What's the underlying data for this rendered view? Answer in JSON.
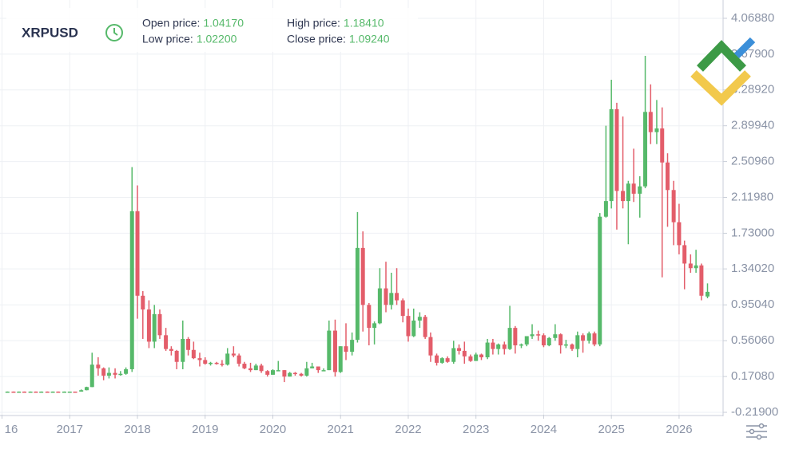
{
  "chart_data": {
    "type": "candlestick",
    "title": "XRPUSD",
    "info": [
      {
        "label": "Open price:",
        "value": "1.04170"
      },
      {
        "label": "Low price:",
        "value": "1.02200"
      },
      {
        "label": "High price:",
        "value": "1.18410"
      },
      {
        "label": "Close price:",
        "value": "1.09240"
      }
    ],
    "up_color": "#56b96a",
    "down_color": "#e35d6a",
    "grid": true,
    "xlim": [
      2015.97,
      2026.65
    ],
    "xticks": [
      {
        "value": 2016,
        "label": "16"
      },
      2017,
      2018,
      2019,
      2020,
      2021,
      2022,
      2023,
      2024,
      2025,
      2026
    ],
    "ylim": [
      -0.245,
      4.268
    ],
    "yticks": [
      {
        "value": -0.219,
        "label": "-0.21900"
      },
      {
        "value": 0.1708,
        "label": "0.17080"
      },
      {
        "value": 0.5606,
        "label": "0.56060"
      },
      {
        "value": 0.9504,
        "label": "0.95040"
      },
      {
        "value": 1.342,
        "label": "1.34020"
      },
      {
        "value": 1.73,
        "label": "1.73000"
      },
      {
        "value": 2.1198,
        "label": "2.11980"
      },
      {
        "value": 2.5096,
        "label": "2.50960"
      },
      {
        "value": 2.8994,
        "label": "2.89940"
      },
      {
        "value": 3.2892,
        "label": "3.28920"
      },
      {
        "value": 3.679,
        "label": "3.67900"
      },
      {
        "value": 4.0688,
        "label": "4.06880"
      }
    ],
    "x": [
      2016.08,
      2016.17,
      2016.25,
      2016.33,
      2016.42,
      2016.5,
      2016.58,
      2016.67,
      2016.75,
      2016.83,
      2016.92,
      2017,
      2017.08,
      2017.17,
      2017.25,
      2017.33,
      2017.42,
      2017.5,
      2017.58,
      2017.67,
      2017.75,
      2017.83,
      2017.92,
      2018,
      2018.08,
      2018.17,
      2018.25,
      2018.33,
      2018.42,
      2018.5,
      2018.58,
      2018.67,
      2018.75,
      2018.83,
      2018.92,
      2019,
      2019.08,
      2019.17,
      2019.25,
      2019.33,
      2019.42,
      2019.5,
      2019.58,
      2019.67,
      2019.75,
      2019.83,
      2019.92,
      2020,
      2020.08,
      2020.17,
      2020.25,
      2020.33,
      2020.42,
      2020.5,
      2020.58,
      2020.67,
      2020.75,
      2020.83,
      2020.92,
      2021,
      2021.08,
      2021.17,
      2021.25,
      2021.33,
      2021.42,
      2021.5,
      2021.58,
      2021.67,
      2021.75,
      2021.83,
      2021.92,
      2022,
      2022.08,
      2022.17,
      2022.25,
      2022.33,
      2022.42,
      2022.5,
      2022.58,
      2022.67,
      2022.75,
      2022.83,
      2022.92,
      2023,
      2023.08,
      2023.17,
      2023.25,
      2023.33,
      2023.42,
      2023.5,
      2023.58,
      2023.67,
      2023.75,
      2023.83,
      2023.92,
      2024,
      2024.08,
      2024.17,
      2024.25,
      2024.33,
      2024.42,
      2024.5,
      2024.58,
      2024.67,
      2024.75,
      2024.83,
      2024.92,
      2025,
      2025.08,
      2025.17,
      2025.25,
      2025.33,
      2025.42,
      2025.5,
      2025.58,
      2025.67,
      2025.75,
      2025.83,
      2025.92,
      2026,
      2026.08,
      2026.17,
      2026.25,
      2026.33,
      2026.42
    ],
    "open": [
      0.006,
      0.0065,
      0.006,
      0.0065,
      0.006,
      0.0065,
      0.006,
      0.0065,
      0.006,
      0.0065,
      0.006,
      0.0065,
      0.0066,
      0.0064,
      0.022,
      0.056,
      0.3,
      0.26,
      0.18,
      0.21,
      0.19,
      0.2,
      0.25,
      1.97,
      1.05,
      0.9,
      0.55,
      0.85,
      0.62,
      0.47,
      0.45,
      0.33,
      0.58,
      0.46,
      0.37,
      0.35,
      0.31,
      0.32,
      0.31,
      0.3,
      0.42,
      0.4,
      0.31,
      0.26,
      0.24,
      0.29,
      0.23,
      0.19,
      0.24,
      0.24,
      0.17,
      0.21,
      0.2,
      0.18,
      0.26,
      0.28,
      0.24,
      0.24,
      0.67,
      0.22,
      0.5,
      0.44,
      0.57,
      1.57,
      0.95,
      0.7,
      0.75,
      1.13,
      0.95,
      1.08,
      1.0,
      0.83,
      0.61,
      0.78,
      0.82,
      0.6,
      0.4,
      0.32,
      0.37,
      0.33,
      0.48,
      0.45,
      0.39,
      0.34,
      0.41,
      0.38,
      0.54,
      0.47,
      0.52,
      0.47,
      0.7,
      0.51,
      0.52,
      0.61,
      0.63,
      0.62,
      0.51,
      0.59,
      0.63,
      0.51,
      0.52,
      0.47,
      0.62,
      0.56,
      0.64,
      0.52,
      1.91,
      2.08,
      3.08,
      2.19,
      2.08,
      2.27,
      2.16,
      2.24,
      3.05,
      2.83,
      2.87,
      2.5,
      2.2,
      1.85,
      1.6,
      1.4,
      1.35,
      1.38,
      1.0417
    ],
    "high": [
      0.008,
      0.008,
      0.008,
      0.008,
      0.008,
      0.008,
      0.008,
      0.008,
      0.008,
      0.008,
      0.008,
      0.0068,
      0.0068,
      0.03,
      0.06,
      0.43,
      0.38,
      0.27,
      0.27,
      0.26,
      0.23,
      0.27,
      2.45,
      2.25,
      1.1,
      1.0,
      0.95,
      0.9,
      0.7,
      0.5,
      0.46,
      0.78,
      0.6,
      0.55,
      0.43,
      0.38,
      0.33,
      0.33,
      0.35,
      0.48,
      0.5,
      0.42,
      0.33,
      0.32,
      0.31,
      0.31,
      0.24,
      0.25,
      0.34,
      0.24,
      0.22,
      0.22,
      0.21,
      0.33,
      0.32,
      0.28,
      0.26,
      0.78,
      0.79,
      0.5,
      0.75,
      0.65,
      1.96,
      1.75,
      0.97,
      0.77,
      1.35,
      1.42,
      1.3,
      1.35,
      1.02,
      0.91,
      0.91,
      0.87,
      0.84,
      0.65,
      0.42,
      0.38,
      0.39,
      0.56,
      0.52,
      0.55,
      0.41,
      0.43,
      0.42,
      0.58,
      0.58,
      0.53,
      0.55,
      0.94,
      0.72,
      0.53,
      0.6,
      0.74,
      0.67,
      0.64,
      0.6,
      0.74,
      0.64,
      0.57,
      0.53,
      0.66,
      0.64,
      0.66,
      0.66,
      1.95,
      2.9,
      3.4,
      3.15,
      3.0,
      2.3,
      2.65,
      2.35,
      3.66,
      3.35,
      3.18,
      3.1,
      2.6,
      2.3,
      2.05,
      1.65,
      1.5,
      1.55,
      1.4,
      1.1841
    ],
    "low": [
      0.005,
      0.005,
      0.005,
      0.005,
      0.005,
      0.005,
      0.005,
      0.005,
      0.005,
      0.005,
      0.005,
      0.006,
      0.006,
      0.006,
      0.02,
      0.055,
      0.18,
      0.13,
      0.15,
      0.15,
      0.18,
      0.19,
      0.22,
      0.8,
      0.58,
      0.48,
      0.48,
      0.58,
      0.45,
      0.4,
      0.25,
      0.25,
      0.4,
      0.36,
      0.28,
      0.3,
      0.29,
      0.3,
      0.28,
      0.29,
      0.38,
      0.28,
      0.25,
      0.22,
      0.24,
      0.21,
      0.17,
      0.19,
      0.23,
      0.11,
      0.17,
      0.18,
      0.17,
      0.17,
      0.26,
      0.21,
      0.23,
      0.24,
      0.17,
      0.21,
      0.35,
      0.4,
      0.54,
      0.66,
      0.51,
      0.52,
      0.74,
      0.87,
      0.9,
      0.95,
      0.76,
      0.55,
      0.6,
      0.7,
      0.58,
      0.33,
      0.29,
      0.31,
      0.32,
      0.31,
      0.41,
      0.31,
      0.33,
      0.34,
      0.35,
      0.36,
      0.41,
      0.41,
      0.41,
      0.46,
      0.42,
      0.48,
      0.5,
      0.58,
      0.56,
      0.49,
      0.5,
      0.56,
      0.42,
      0.48,
      0.45,
      0.38,
      0.43,
      0.53,
      0.5,
      0.5,
      1.9,
      2.0,
      1.77,
      2.0,
      1.61,
      2.07,
      1.9,
      2.22,
      2.7,
      2.7,
      1.25,
      1.8,
      1.6,
      1.5,
      1.12,
      1.3,
      1.3,
      1.0,
      1.022
    ],
    "close": [
      0.0065,
      0.006,
      0.0065,
      0.006,
      0.0065,
      0.006,
      0.0065,
      0.006,
      0.0065,
      0.006,
      0.0065,
      0.0066,
      0.0064,
      0.022,
      0.056,
      0.3,
      0.26,
      0.18,
      0.21,
      0.19,
      0.2,
      0.25,
      1.97,
      1.05,
      0.9,
      0.55,
      0.85,
      0.62,
      0.47,
      0.45,
      0.33,
      0.58,
      0.46,
      0.37,
      0.35,
      0.31,
      0.32,
      0.31,
      0.3,
      0.42,
      0.4,
      0.31,
      0.26,
      0.24,
      0.29,
      0.23,
      0.19,
      0.24,
      0.24,
      0.17,
      0.21,
      0.2,
      0.18,
      0.26,
      0.28,
      0.24,
      0.24,
      0.67,
      0.22,
      0.5,
      0.44,
      0.57,
      1.57,
      0.95,
      0.7,
      0.75,
      1.13,
      0.95,
      1.08,
      1.0,
      0.83,
      0.61,
      0.78,
      0.82,
      0.6,
      0.4,
      0.32,
      0.37,
      0.33,
      0.48,
      0.45,
      0.39,
      0.34,
      0.41,
      0.38,
      0.54,
      0.47,
      0.52,
      0.47,
      0.7,
      0.51,
      0.52,
      0.61,
      0.63,
      0.62,
      0.51,
      0.59,
      0.63,
      0.51,
      0.52,
      0.47,
      0.62,
      0.56,
      0.64,
      0.52,
      1.91,
      2.08,
      3.08,
      2.19,
      2.08,
      2.27,
      2.16,
      2.24,
      3.05,
      2.83,
      2.87,
      2.5,
      2.2,
      1.85,
      1.6,
      1.4,
      1.35,
      1.38,
      1.05,
      1.0924
    ]
  }
}
